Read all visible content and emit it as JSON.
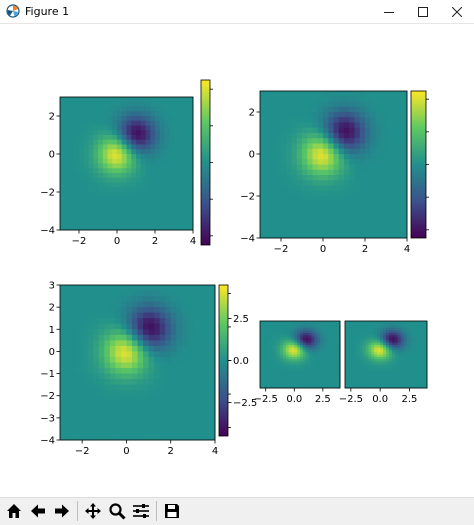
{
  "window": {
    "title": "Figure 1"
  },
  "window_controls": [
    "minimize",
    "maximize",
    "close"
  ],
  "toolbar": {
    "buttons": [
      {
        "name": "home-icon"
      },
      {
        "name": "back-icon"
      },
      {
        "name": "forward-icon"
      },
      {
        "name": "pan-icon"
      },
      {
        "name": "zoom-icon"
      },
      {
        "name": "configure-subplots-icon"
      },
      {
        "name": "save-icon"
      }
    ]
  },
  "colors": {
    "viridis_low": "#440154",
    "viridis_mid": "#21908c",
    "viridis_high": "#fde725",
    "plot_background": "#21908c"
  },
  "chart_data": [
    {
      "type": "heatmap",
      "title": "",
      "xlabel": "",
      "ylabel": "",
      "xlim": [
        -3,
        4
      ],
      "ylim": [
        -4,
        3
      ],
      "x_ticks": [
        "−2",
        "0",
        "2",
        "4"
      ],
      "y_ticks": [
        "2",
        "0",
        "−2",
        "−4"
      ],
      "colorbar": {
        "ticks": [],
        "range": [
          -4.5,
          4.5
        ]
      }
    },
    {
      "type": "heatmap",
      "title": "",
      "xlabel": "",
      "ylabel": "",
      "xlim": [
        -3,
        4
      ],
      "ylim": [
        -4,
        3
      ],
      "x_ticks": [
        "−2",
        "0",
        "2",
        "4"
      ],
      "y_ticks": [
        "2",
        "0",
        "−2",
        "−4"
      ],
      "colorbar": {
        "ticks": [],
        "range": [
          -4.5,
          4.5
        ]
      }
    },
    {
      "type": "heatmap",
      "title": "",
      "xlabel": "",
      "ylabel": "",
      "xlim": [
        -3,
        4
      ],
      "ylim": [
        -4,
        3
      ],
      "x_ticks": [
        "−2",
        "0",
        "2",
        "4"
      ],
      "y_ticks": [
        "3",
        "2",
        "1",
        "0",
        "−1",
        "−2",
        "−3",
        "−4"
      ],
      "colorbar": {
        "ticks": [
          "2.5",
          "0.0",
          "−2.5"
        ],
        "range": [
          -4.5,
          4.5
        ]
      }
    },
    {
      "type": "heatmap",
      "title": "",
      "xlabel": "",
      "ylabel": "",
      "xlim": [
        -3,
        4
      ],
      "ylim": [
        -4,
        3
      ],
      "x_ticks": [
        "−2.5",
        "0.0",
        "2.5"
      ],
      "y_ticks": []
    },
    {
      "type": "heatmap",
      "title": "",
      "xlabel": "",
      "ylabel": "",
      "xlim": [
        -3,
        4
      ],
      "ylim": [
        -4,
        3
      ],
      "x_ticks": [
        "−2.5",
        "0.0",
        "2.5"
      ],
      "y_ticks": []
    }
  ]
}
